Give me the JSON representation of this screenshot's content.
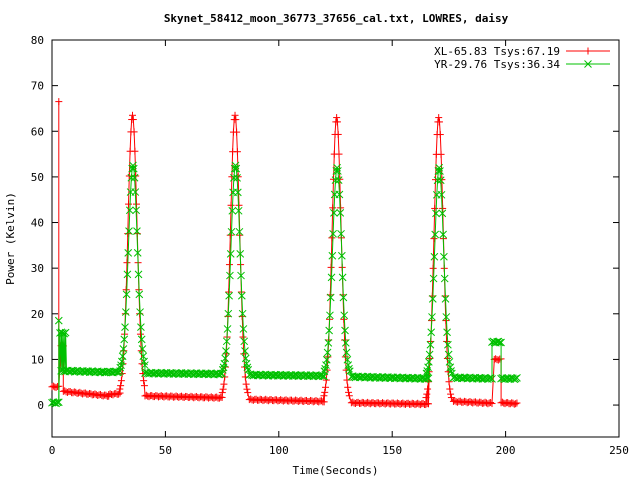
{
  "chart_data": {
    "type": "scatter",
    "title": "Skynet_58412_moon_36773_37656_cal.txt, LOWRES, daisy",
    "xlabel": "Time(Seconds)",
    "ylabel": "Power (Kelvin)",
    "xlim": [
      0,
      250
    ],
    "ylim": [
      -7,
      80
    ],
    "x_ticks": [
      "0",
      "50",
      "100",
      "150",
      "200",
      "250"
    ],
    "y_ticks": [
      "0",
      "10",
      "20",
      "30",
      "40",
      "50",
      "60",
      "70",
      "80"
    ],
    "grid": false,
    "legend_position": "top-right",
    "series": [
      {
        "name": "XL-65.83 Tsys:67.19",
        "color": "#ff0000",
        "marker": "plus",
        "baseline_segments": [
          [
            0,
            3,
            4.0,
            4.0
          ],
          [
            4,
            5,
            13.0,
            13.0
          ],
          [
            5,
            25,
            3.0,
            2.0
          ],
          [
            25,
            30,
            2.3,
            2.5
          ],
          [
            41,
            75,
            2.0,
            1.6
          ],
          [
            87,
            120,
            1.2,
            0.8
          ],
          [
            132,
            166,
            0.5,
            0.2
          ],
          [
            177,
            194,
            0.8,
            0.4
          ],
          [
            195,
            198,
            10.0,
            10.0
          ],
          [
            198,
            205,
            0.5,
            0.3
          ]
        ],
        "peaks": [
          {
            "t": 35.5,
            "peak": 63.5,
            "base": 2.3
          },
          {
            "t": 80.7,
            "peak": 63.5,
            "base": 1.5
          },
          {
            "t": 125.5,
            "peak": 63.0,
            "base": 0.8
          },
          {
            "t": 170.5,
            "peak": 63.0,
            "base": 0.4
          }
        ],
        "spikes": [
          {
            "t": 3.0,
            "from": 4.0,
            "to": 66.5
          }
        ]
      },
      {
        "name": "YR-29.76 Tsys:36.34",
        "color": "#00c000",
        "marker": "x",
        "baseline_segments": [
          [
            0,
            3,
            0.5,
            0.5
          ],
          [
            3.5,
            6,
            15.8,
            15.8
          ],
          [
            4,
            25,
            7.5,
            7.2
          ],
          [
            25,
            30,
            7.2,
            7.3
          ],
          [
            41,
            75,
            7.0,
            6.8
          ],
          [
            87,
            120,
            6.6,
            6.4
          ],
          [
            132,
            166,
            6.2,
            5.8
          ],
          [
            177,
            194,
            6.0,
            5.8
          ],
          [
            194,
            198,
            13.8,
            13.8
          ],
          [
            198,
            205,
            5.8,
            5.8
          ]
        ],
        "peaks": [
          {
            "t": 35.7,
            "peak": 52.5,
            "base": 7.3
          },
          {
            "t": 80.9,
            "peak": 52.5,
            "base": 6.8
          },
          {
            "t": 125.7,
            "peak": 52.0,
            "base": 6.5
          },
          {
            "t": 170.7,
            "peak": 52.0,
            "base": 6.0
          }
        ],
        "spikes": [
          {
            "t": 3.0,
            "from": 0.5,
            "to": 18.5
          }
        ]
      }
    ]
  }
}
